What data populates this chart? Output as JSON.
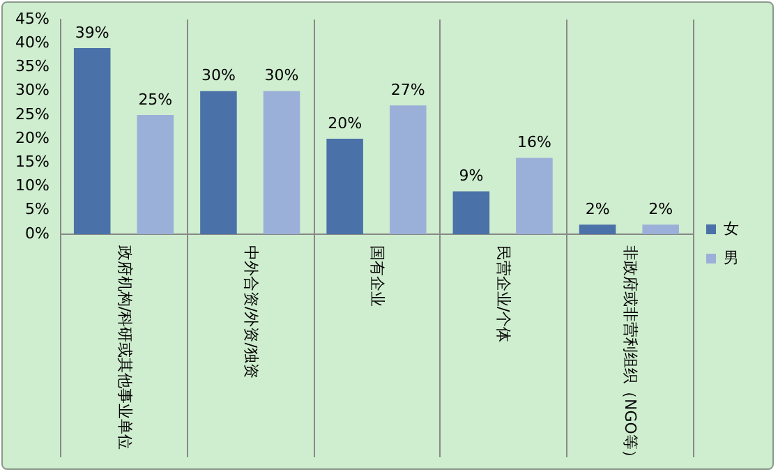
{
  "chart_data": {
    "type": "bar",
    "categories": [
      "政府机构/科研或其他事业单位",
      "中外合资/外资/独资",
      "国有企业",
      "民营企业/个体",
      "非政府或非营利组织（NGO等）"
    ],
    "series": [
      {
        "name": "女",
        "color": "#4a72a8",
        "values": [
          39,
          30,
          20,
          9,
          2
        ],
        "value_labels": [
          "39%",
          "30%",
          "20%",
          "9%",
          "2%"
        ]
      },
      {
        "name": "男",
        "color": "#9bb0d8",
        "values": [
          25,
          30,
          27,
          16,
          2
        ],
        "value_labels": [
          "25%",
          "30%",
          "27%",
          "16%",
          "2%"
        ]
      }
    ],
    "ylim": [
      0,
      45
    ],
    "yticks": [
      {
        "value": 0,
        "label": "0%"
      },
      {
        "value": 5,
        "label": "5%"
      },
      {
        "value": 10,
        "label": "10%"
      },
      {
        "value": 15,
        "label": "15%"
      },
      {
        "value": 20,
        "label": "20%"
      },
      {
        "value": 25,
        "label": "25%"
      },
      {
        "value": 30,
        "label": "30%"
      },
      {
        "value": 35,
        "label": "35%"
      },
      {
        "value": 40,
        "label": "40%"
      },
      {
        "value": 45,
        "label": "45%"
      }
    ],
    "grid": "x",
    "legend": "right"
  }
}
